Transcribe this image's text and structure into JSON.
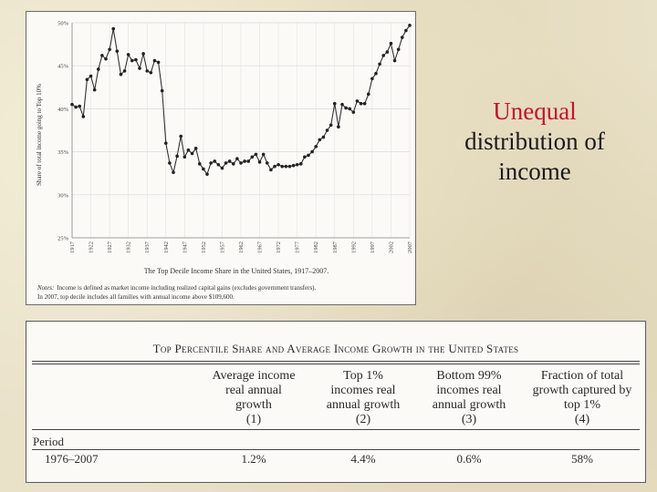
{
  "chart_data": {
    "type": "line",
    "ylabel": "Share of total income going to Top 10%",
    "ylim": [
      25,
      50
    ],
    "yticks": [
      "25%",
      "30%",
      "35%",
      "40%",
      "45%",
      "50%"
    ],
    "xticks": [
      "1917",
      "1922",
      "1927",
      "1932",
      "1937",
      "1942",
      "1947",
      "1952",
      "1957",
      "1962",
      "1967",
      "1972",
      "1977",
      "1982",
      "1987",
      "1992",
      "1997",
      "2002",
      "2007"
    ],
    "grid": true,
    "caption": "The Top Decile Income Share in the United States, 1917–2007.",
    "notes_label": "Notes:",
    "notes_line1": "Income is defined as market income including realized capital gains (excludes government transfers).",
    "notes_line2": "In 2007, top decile includes all families with annual income above $109,600.",
    "series": [
      {
        "x": [
          1917,
          1918,
          1919,
          1920,
          1921,
          1922,
          1923,
          1924,
          1925,
          1926,
          1927,
          1928,
          1929,
          1930,
          1931,
          1932,
          1933,
          1934,
          1935,
          1936,
          1937,
          1938,
          1939,
          1940,
          1941,
          1942,
          1943,
          1944,
          1945,
          1946,
          1947,
          1948,
          1949,
          1950,
          1951,
          1952,
          1953,
          1954,
          1955,
          1956,
          1957,
          1958,
          1959,
          1960,
          1961,
          1962,
          1963,
          1964,
          1965,
          1966,
          1967,
          1968,
          1969,
          1970,
          1971,
          1972,
          1973,
          1974,
          1975,
          1976,
          1977,
          1978,
          1979,
          1980,
          1981,
          1982,
          1983,
          1984,
          1985,
          1986,
          1987,
          1988,
          1989,
          1990,
          1991,
          1992,
          1993,
          1994,
          1995,
          1996,
          1997,
          1998,
          1999,
          2000,
          2001,
          2002,
          2003,
          2004,
          2005,
          2006,
          2007
        ],
        "y": [
          40.5,
          40.2,
          40.3,
          39.1,
          43.4,
          43.8,
          42.2,
          44.6,
          46.2,
          45.8,
          46.9,
          49.3,
          46.7,
          44.0,
          44.4,
          46.3,
          45.6,
          45.7,
          44.7,
          46.4,
          44.4,
          44.2,
          45.6,
          45.4,
          42.1,
          36.0,
          33.7,
          32.6,
          34.5,
          36.8,
          34.4,
          35.2,
          34.8,
          35.4,
          33.6,
          33.0,
          32.4,
          33.7,
          33.9,
          33.5,
          33.1,
          33.7,
          33.9,
          33.6,
          34.2,
          33.7,
          33.9,
          33.9,
          34.4,
          34.7,
          33.8,
          34.7,
          33.7,
          32.9,
          33.3,
          33.5,
          33.3,
          33.3,
          33.3,
          33.4,
          33.5,
          33.6,
          34.4,
          34.6,
          35.0,
          35.6,
          36.4,
          36.7,
          37.5,
          38.1,
          40.6,
          37.9,
          40.5,
          40.1,
          40.0,
          39.6,
          40.9,
          40.6,
          40.6,
          41.7,
          43.5,
          44.1,
          45.2,
          46.2,
          46.6,
          47.6,
          45.6,
          46.9,
          48.3,
          49.1,
          49.7
        ]
      }
    ]
  },
  "slide_title": {
    "line1": "Unequal",
    "line2": "distribution of",
    "line3": "income"
  },
  "table": {
    "title": "Top Percentile Share and Average Income Growth in the United States",
    "columns": [
      {
        "line1": "Average income",
        "line2": "real annual",
        "line3": "growth",
        "line4": "(1)"
      },
      {
        "line1": "Top 1%",
        "line2": "incomes real",
        "line3": "annual growth",
        "line4": "(2)"
      },
      {
        "line1": "Bottom 99%",
        "line2": "incomes real",
        "line3": "annual growth",
        "line4": "(3)"
      },
      {
        "line1": "Fraction of total",
        "line2": "growth captured by",
        "line3": "top 1%",
        "line4": "(4)"
      }
    ],
    "row_header": "Period",
    "rows": [
      {
        "period": "1976–2007",
        "values": [
          "1.2%",
          "4.4%",
          "0.6%",
          "58%"
        ]
      }
    ]
  }
}
